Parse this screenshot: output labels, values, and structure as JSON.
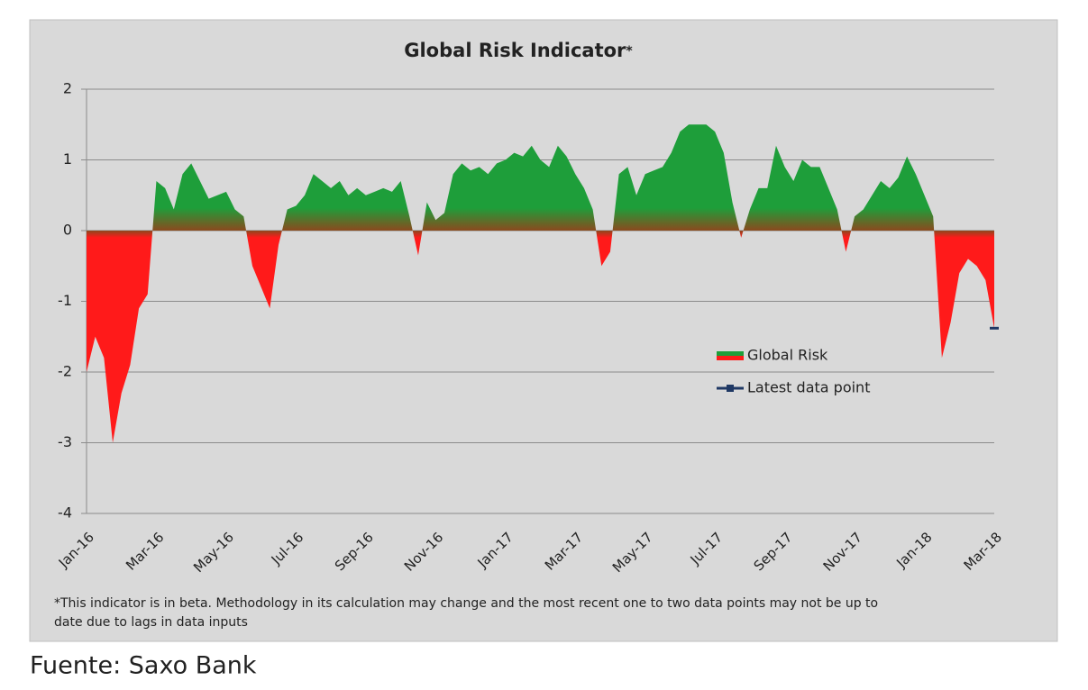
{
  "chart_data": {
    "type": "area",
    "title": "Global Risk Indicator",
    "title_mark": "*",
    "footnote": [
      "*This indicator is in beta. Methodology in its calculation  may change and  the most recent one to two data points may not be up to",
      "date due to lags in data inputs"
    ],
    "source": "Fuente: Saxo Bank",
    "categories": [
      "Jan-16",
      null,
      null,
      null,
      null,
      null,
      null,
      null,
      "Mar-16",
      null,
      null,
      null,
      null,
      null,
      null,
      null,
      "May-16",
      null,
      null,
      null,
      null,
      null,
      null,
      null,
      "Jul-16",
      null,
      null,
      null,
      null,
      null,
      null,
      null,
      "Sep-16",
      null,
      null,
      null,
      null,
      null,
      null,
      null,
      "Nov-16",
      null,
      null,
      null,
      null,
      null,
      null,
      null,
      "Jan-17",
      null,
      null,
      null,
      null,
      null,
      null,
      null,
      "Mar-17",
      null,
      null,
      null,
      null,
      null,
      null,
      null,
      "May-17",
      null,
      null,
      null,
      null,
      null,
      null,
      null,
      "Jul-17",
      null,
      null,
      null,
      null,
      null,
      null,
      null,
      "Sep-17",
      null,
      null,
      null,
      null,
      null,
      null,
      null,
      "Nov-17",
      null,
      null,
      null,
      null,
      null,
      null,
      null,
      "Jan-18",
      null,
      null,
      null,
      null,
      null,
      null,
      null,
      "Mar-18"
    ],
    "series": [
      {
        "name": "Global Risk",
        "positive_color": "#1e9e3a",
        "negative_color": "#ff1a1a",
        "values": [
          -2.0,
          -1.5,
          -1.8,
          -3.0,
          -2.3,
          -1.9,
          -1.1,
          -0.9,
          0.7,
          0.6,
          0.3,
          0.8,
          0.95,
          0.7,
          0.45,
          0.5,
          0.55,
          0.3,
          0.2,
          -0.5,
          -0.8,
          -1.1,
          -0.2,
          0.3,
          0.35,
          0.5,
          0.8,
          0.7,
          0.6,
          0.7,
          0.5,
          0.6,
          0.5,
          0.55,
          0.6,
          0.55,
          0.7,
          0.2,
          -0.35,
          0.4,
          0.15,
          0.25,
          0.8,
          0.95,
          0.85,
          0.9,
          0.8,
          0.95,
          1.0,
          1.1,
          1.05,
          1.2,
          1.0,
          0.9,
          1.2,
          1.05,
          0.8,
          0.6,
          0.3,
          -0.5,
          -0.3,
          0.8,
          0.9,
          0.5,
          0.8,
          0.85,
          0.9,
          1.1,
          1.4,
          1.5,
          1.5,
          1.5,
          1.4,
          1.1,
          0.4,
          -0.1,
          0.3,
          0.6,
          0.6,
          1.2,
          0.9,
          0.7,
          1.0,
          0.9,
          0.9,
          0.6,
          0.3,
          -0.3,
          0.2,
          0.3,
          0.5,
          0.7,
          0.6,
          0.75,
          1.05,
          0.8,
          0.5,
          0.2,
          -1.8,
          -1.3,
          -0.6,
          -0.4,
          -0.5,
          -0.7,
          -1.38
        ]
      },
      {
        "name": "Latest data point",
        "color": "#1f3864",
        "values": [
          null,
          null,
          null,
          null,
          null,
          null,
          null,
          null,
          null,
          null,
          null,
          null,
          null,
          null,
          null,
          null,
          null,
          null,
          null,
          null,
          null,
          null,
          null,
          null,
          null,
          null,
          null,
          null,
          null,
          null,
          null,
          null,
          null,
          null,
          null,
          null,
          null,
          null,
          null,
          null,
          null,
          null,
          null,
          null,
          null,
          null,
          null,
          null,
          null,
          null,
          null,
          null,
          null,
          null,
          null,
          null,
          null,
          null,
          null,
          null,
          null,
          null,
          null,
          null,
          null,
          null,
          null,
          null,
          null,
          null,
          null,
          null,
          null,
          null,
          null,
          null,
          null,
          null,
          null,
          null,
          null,
          null,
          null,
          null,
          null,
          null,
          null,
          null,
          null,
          null,
          null,
          null,
          null,
          null,
          null,
          null,
          null,
          null,
          null,
          null,
          null,
          null,
          null,
          null,
          -1.38
        ]
      }
    ],
    "ylim": [
      -4,
      2
    ],
    "yticks": [
      2,
      1,
      0,
      -1,
      -2,
      -3,
      -4
    ],
    "grid": true
  }
}
